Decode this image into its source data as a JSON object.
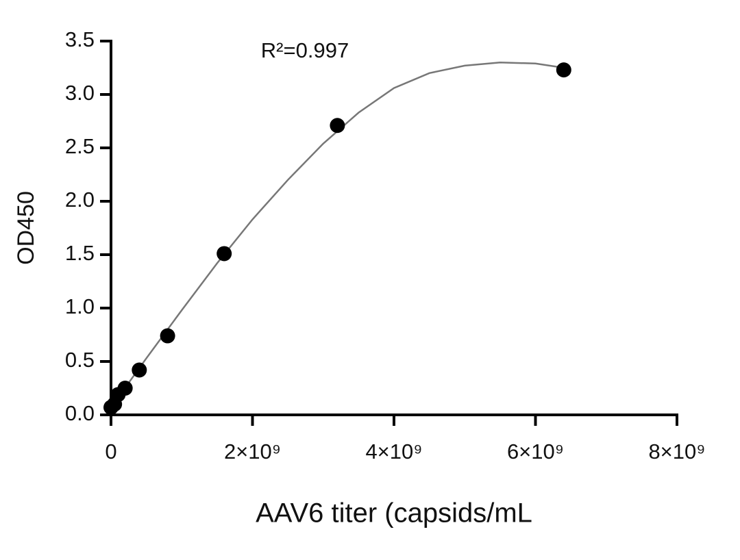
{
  "chart_data": {
    "type": "scatter",
    "annotation": "R²=0.997",
    "x_label": "AAV6 titer (capsids/mL",
    "y_label": "OD450",
    "x": [
      0,
      50000000,
      100000000,
      200000000,
      400000000,
      800000000,
      1600000000,
      3200000000,
      6400000000
    ],
    "values": [
      0.07,
      0.1,
      0.19,
      0.25,
      0.42,
      0.74,
      1.51,
      2.71,
      3.23
    ],
    "color": "#000000",
    "fit": {
      "color": "#777777",
      "x": [
        0,
        500000000,
        1000000000,
        1500000000,
        2000000000,
        2500000000,
        3000000000,
        3500000000,
        4000000000,
        4500000000,
        5000000000,
        5500000000,
        6000000000,
        6400000000
      ],
      "values": [
        0.07,
        0.53,
        0.98,
        1.42,
        1.83,
        2.2,
        2.54,
        2.83,
        3.06,
        3.2,
        3.27,
        3.3,
        3.29,
        3.25
      ]
    },
    "xlim": [
      0,
      8000000000
    ],
    "ylim": [
      0,
      3.5
    ],
    "xticks": [
      0,
      {
        "value": 2000000000,
        "label": "2×10⁹"
      },
      {
        "value": 4000000000,
        "label": "4×10⁹"
      },
      {
        "value": 6000000000,
        "label": "6×10⁹"
      },
      {
        "value": 8000000000,
        "label": "8×10⁹"
      }
    ],
    "yticks": [
      {
        "value": 0,
        "label": "0.0"
      },
      0.5,
      {
        "value": 1,
        "label": "1.0"
      },
      1.5,
      {
        "value": 2,
        "label": "2.0"
      },
      2.5,
      {
        "value": 3,
        "label": "3.0"
      },
      3.5
    ]
  }
}
